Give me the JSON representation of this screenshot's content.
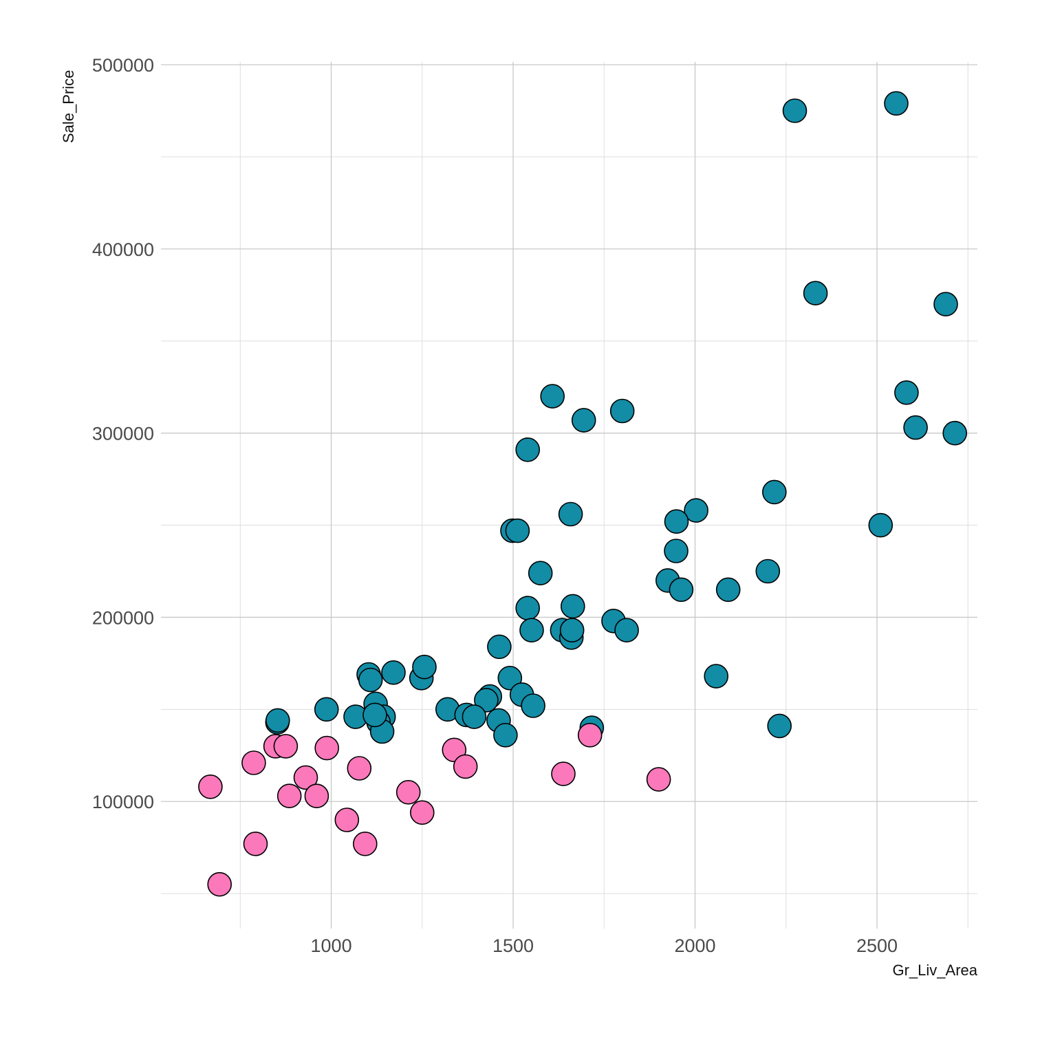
{
  "chart_data": {
    "type": "scatter",
    "xlabel": "Gr_Liv_Area",
    "ylabel": "Sale_Price",
    "xlim": [
      532,
      2776
    ],
    "ylim": [
      31000,
      509000
    ],
    "x_ticks": [
      1000,
      1500,
      2000,
      2500
    ],
    "x_tick_labels": [
      "1000",
      "1500",
      "2000",
      "2500"
    ],
    "y_ticks": [
      100000,
      200000,
      300000,
      400000,
      500000
    ],
    "y_tick_labels": [
      "100000",
      "200000",
      "300000",
      "400000",
      "500000"
    ],
    "grid": true,
    "legend": "none",
    "series": [
      {
        "color": "#138ca6",
        "points": [
          [
            2274,
            475000
          ],
          [
            2553,
            479000
          ],
          [
            2331,
            376000
          ],
          [
            2689,
            370000
          ],
          [
            2581,
            322000
          ],
          [
            2606,
            303000
          ],
          [
            2714,
            300000
          ],
          [
            1608,
            320000
          ],
          [
            1694,
            307000
          ],
          [
            1800,
            312000
          ],
          [
            1540,
            291000
          ],
          [
            2218,
            268000
          ],
          [
            2003,
            258000
          ],
          [
            1949,
            252000
          ],
          [
            1658,
            256000
          ],
          [
            1498,
            247000
          ],
          [
            1512,
            247000
          ],
          [
            2510,
            250000
          ],
          [
            1948,
            236000
          ],
          [
            1575,
            224000
          ],
          [
            2200,
            225000
          ],
          [
            1925,
            220000
          ],
          [
            1962,
            215000
          ],
          [
            2091,
            215000
          ],
          [
            1540,
            205000
          ],
          [
            1664,
            206000
          ],
          [
            1776,
            198000
          ],
          [
            1812,
            193000
          ],
          [
            1551,
            193000
          ],
          [
            1635,
            193000
          ],
          [
            1660,
            189000
          ],
          [
            1662,
            193000
          ],
          [
            1462,
            184000
          ],
          [
            1103,
            169000
          ],
          [
            1108,
            166000
          ],
          [
            1171,
            170000
          ],
          [
            1248,
            167000
          ],
          [
            1256,
            173000
          ],
          [
            1491,
            167000
          ],
          [
            2058,
            168000
          ],
          [
            1524,
            158000
          ],
          [
            1436,
            157000
          ],
          [
            1426,
            155000
          ],
          [
            1555,
            152000
          ],
          [
            1320,
            150000
          ],
          [
            1372,
            147000
          ],
          [
            1393,
            146000
          ],
          [
            1460,
            144000
          ],
          [
            1479,
            136000
          ],
          [
            987,
            150000
          ],
          [
            1067,
            146000
          ],
          [
            1122,
            153000
          ],
          [
            1144,
            146000
          ],
          [
            1130,
            143000
          ],
          [
            1140,
            138000
          ],
          [
            1120,
            147000
          ],
          [
            852,
            143000
          ],
          [
            853,
            144000
          ],
          [
            1716,
            140000
          ],
          [
            2232,
            141000
          ]
        ]
      },
      {
        "color": "#fb78bb",
        "points": [
          [
            668,
            108000
          ],
          [
            693,
            55000
          ],
          [
            787,
            121000
          ],
          [
            792,
            77000
          ],
          [
            847,
            130000
          ],
          [
            875,
            130000
          ],
          [
            885,
            103000
          ],
          [
            930,
            113000
          ],
          [
            960,
            103000
          ],
          [
            988,
            129000
          ],
          [
            1043,
            90000
          ],
          [
            1077,
            118000
          ],
          [
            1093,
            77000
          ],
          [
            1212,
            105000
          ],
          [
            1250,
            94000
          ],
          [
            1338,
            128000
          ],
          [
            1369,
            119000
          ],
          [
            1638,
            115000
          ],
          [
            1711,
            136000
          ],
          [
            1900,
            112000
          ]
        ]
      }
    ]
  }
}
